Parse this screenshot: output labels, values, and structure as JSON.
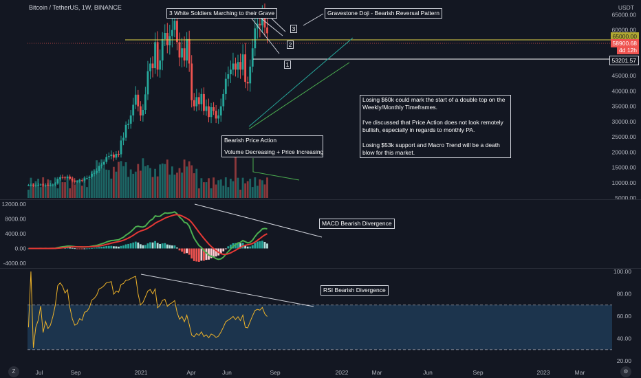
{
  "symbol": {
    "title": "Bitcoin / TetherUS, 1W, BINANCE",
    "currency": "USDT"
  },
  "price_tags": {
    "top": "65000.00",
    "last": "58900.68",
    "countdown": "4d 12h",
    "support": "53201.57"
  },
  "annotations": {
    "soldiers": "3 White Soldiers Marching to their Grave",
    "gravestone": "Gravestone Doji - Bearish Reversal Pattern",
    "bearish_pa_title": "Bearish Price Action",
    "bearish_pa_body": "Volume Decreasing + Price Increasing",
    "macd_div": "MACD Bearish Divergence",
    "rsi_div": "RSI Bearish Divergence",
    "commentary_1": "Losing $60k could mark the start of a double top on the Weekly/Monthly Timeframes.",
    "commentary_2": "I've discussed that Price Action does not look remotely bullish, especially in regards to monthly PA.",
    "commentary_3": "Losing $53k support and Macro Trend will be a death blow for this market.",
    "num1": "1",
    "num2": "2",
    "num3": "3"
  },
  "axes": {
    "price_ticks": [
      "65000.00",
      "60000.00",
      "55000.00",
      "50000.00",
      "45000.00",
      "40000.00",
      "35000.00",
      "30000.00",
      "25000.00",
      "20000.00",
      "15000.00",
      "10000.00",
      "5000.00"
    ],
    "macd_ticks": [
      "12000.00",
      "8000.00",
      "4000.00",
      "0.00",
      "-4000.00"
    ],
    "rsi_ticks": [
      "100.00",
      "80.00",
      "60.00",
      "40.00",
      "20.00"
    ],
    "time_ticks": [
      "Jul",
      "Sep",
      "2021",
      "Apr",
      "Jun",
      "Sep",
      "2022",
      "Mar",
      "Jun",
      "Sep",
      "2023",
      "Mar"
    ]
  },
  "buttons": {
    "timezone": "Z",
    "settings": "⚙"
  },
  "colors": {
    "up": "#26a69a",
    "down": "#ef5350",
    "macd": "#4caf50",
    "signal": "#e53935",
    "rsi": "#f0b429"
  },
  "chart_data": {
    "type": "candlestick",
    "title": "Bitcoin / TetherUS, 1W, BINANCE",
    "ohlc_close": [
      9200,
      9300,
      9100,
      9200,
      9250,
      9400,
      9150,
      9300,
      9200,
      9250,
      9400,
      9700,
      11200,
      11800,
      11700,
      11500,
      12000,
      11300,
      10700,
      10300,
      10400,
      10800,
      10700,
      11400,
      11500,
      11900,
      12900,
      13200,
      13800,
      15500,
      15900,
      16800,
      18400,
      18700,
      19200,
      18200,
      19400,
      19300,
      23800,
      24700,
      28900,
      29300,
      32000,
      35500,
      38800,
      35000,
      32000,
      33800,
      38900,
      46500,
      49000,
      47500,
      56000,
      47000,
      50000,
      57000,
      59000,
      55000,
      58000,
      60000,
      63000,
      56000,
      51000,
      54000,
      50000,
      57000,
      49000,
      37000,
      35000,
      38000,
      35700,
      39000,
      33500,
      35000,
      31500,
      34700,
      33500,
      31000,
      32000,
      35000,
      39000,
      44000,
      45500,
      47000,
      49000,
      47000,
      49500,
      47000,
      52000,
      43000,
      42500,
      48000,
      54000,
      60500,
      62000,
      61500,
      65000,
      60800,
      58900
    ],
    "ylim": [
      5000,
      68000
    ],
    "macd_ylim": [
      -4000,
      12000
    ],
    "rsi_ylim": [
      20,
      100
    ]
  }
}
